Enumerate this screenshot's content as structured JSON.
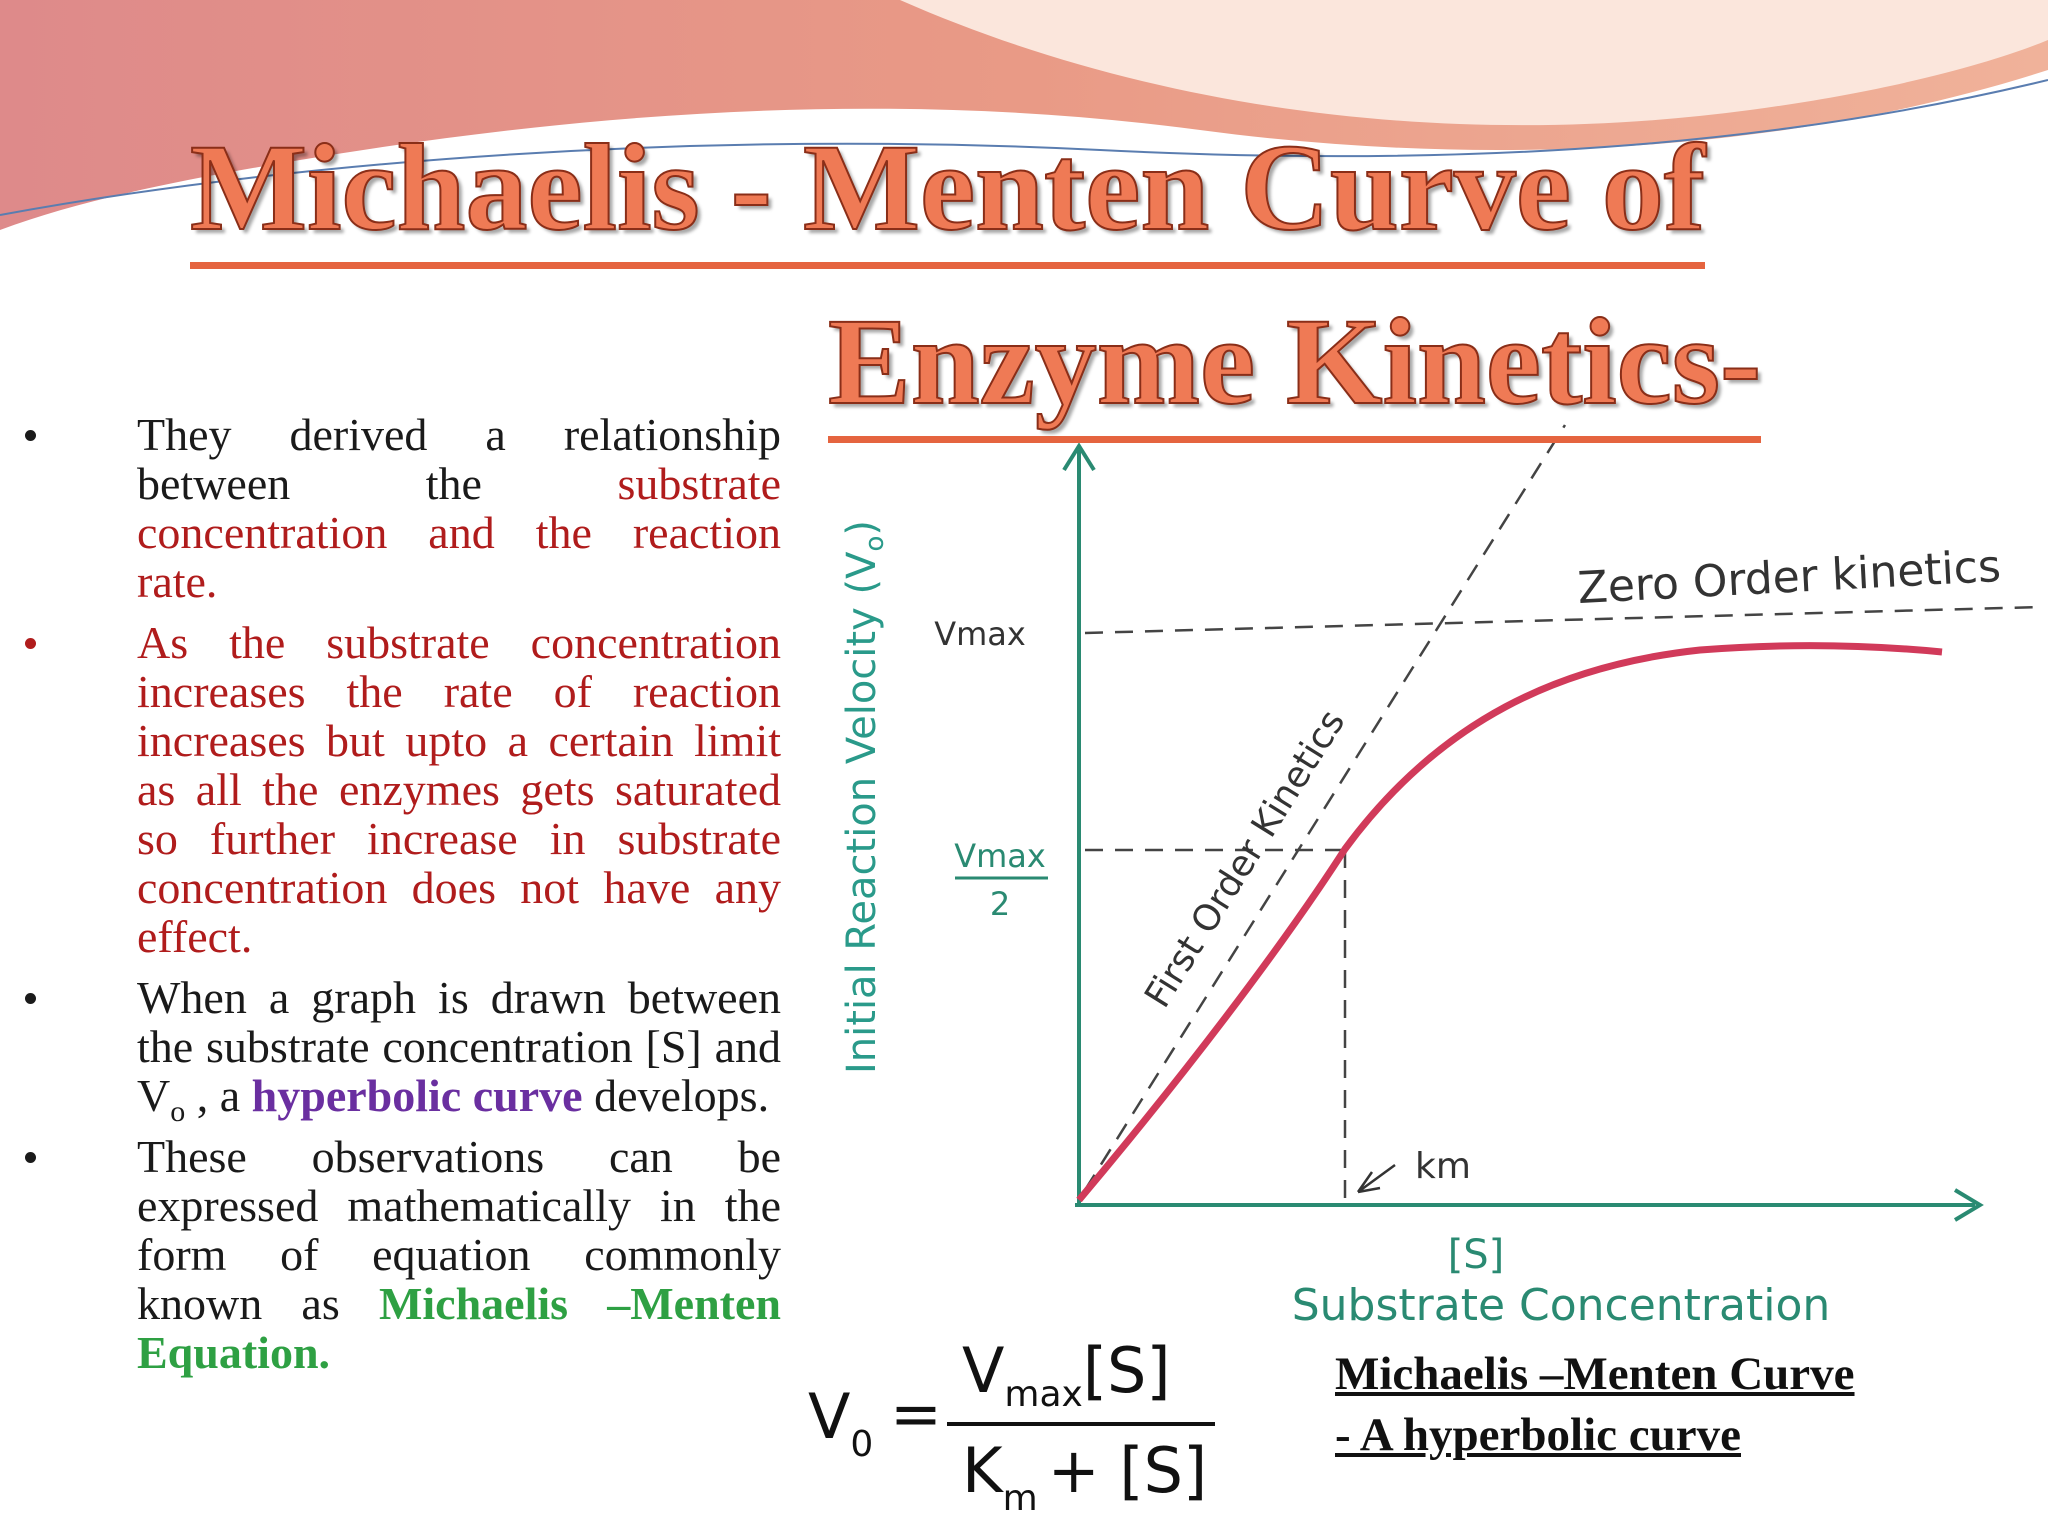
{
  "title": {
    "line1": "Michaelis - Menten Curve of",
    "line2": "Enzyme Kinetics-"
  },
  "bullets": [
    {
      "bullet_color": "#1a1a1a",
      "runs": [
        {
          "text": "They derived a relationship between the ",
          "color": "#1a1a1a"
        },
        {
          "text": "substrate concentration and the reaction rate.",
          "color": "#b01c1c"
        }
      ]
    },
    {
      "bullet_color": "#b01c1c",
      "runs": [
        {
          "text": "As the substrate concentration increases the rate of reaction increases but upto a certain limit as all the enzymes gets saturated so further increase in substrate concentration does not have any effect.",
          "color": "#b01c1c"
        }
      ]
    },
    {
      "bullet_color": "#1a1a1a",
      "runs": [
        {
          "text": "When a graph is drawn between the substrate concentration [S] and V",
          "color": "#1a1a1a"
        },
        {
          "text": "o",
          "color": "#1a1a1a",
          "sub": true
        },
        {
          "text": "  , a ",
          "color": "#1a1a1a"
        },
        {
          "text": "hyperbolic curve",
          "color": "#6a2fa0",
          "bold": true
        },
        {
          "text": " develops.",
          "color": "#1a1a1a"
        }
      ]
    },
    {
      "bullet_color": "#1a1a1a",
      "runs": [
        {
          "text": "These observations can be expressed mathematically in the form of equation commonly known as ",
          "color": "#1a1a1a"
        },
        {
          "text": "Michaelis –Menten Equation.",
          "color": "#2ea043",
          "bold": true
        }
      ]
    }
  ],
  "diagram": {
    "y_axis_label": "Initial Reaction Velocity (V",
    "y_axis_label_sub": "o",
    "y_axis_label_end": ")",
    "vmax": "Vmax",
    "half_top": "Vmax",
    "half_bottom": "2",
    "zero_order": "Zero Order kinetics",
    "first_order": "First Order Kinetics",
    "km": "km",
    "x_symbol": "[S]",
    "x_axis_label": "Substrate Concentration"
  },
  "equation": {
    "lhs": "V",
    "lhs_sub": "0",
    "equals": "=",
    "num": "V",
    "num_sub": "max",
    "num_end": "[S]",
    "den": "K",
    "den_sub": "m",
    "den_end": "+ [S]"
  },
  "caption": {
    "line1": "Michaelis –Menten Curve",
    "line2": "- A hyperbolic curve"
  }
}
